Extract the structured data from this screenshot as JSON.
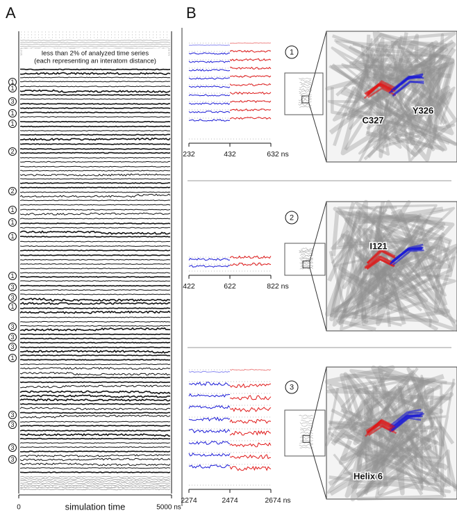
{
  "panel_a": {
    "label": "A",
    "note": [
      "less than 2% of analyzed time series",
      "(each representing an interatom distance)"
    ],
    "markers": [
      "1",
      "1",
      "3",
      "1",
      "1",
      "2",
      "2",
      "1",
      "1",
      "1",
      "1",
      "3",
      "3",
      "1",
      "3",
      "3",
      "3",
      "1",
      "3",
      "3",
      "3",
      "3"
    ],
    "xticks": [
      0,
      {
        "value": 5000,
        "label": "5000 ns"
      }
    ],
    "xlabel": "simulation time"
  },
  "panel_b": {
    "label": "B",
    "rows": [
      {
        "marker": "1",
        "xticks": [
          232,
          432,
          {
            "value": 632,
            "label": "632 ns"
          }
        ],
        "residues": [
          "C327",
          "Y326"
        ]
      },
      {
        "marker": "2",
        "xticks": [
          422,
          622,
          {
            "value": 822,
            "label": "822 ns"
          }
        ],
        "residues": [
          "I121"
        ]
      },
      {
        "marker": "3",
        "xticks": [
          2274,
          2474,
          {
            "value": 2674,
            "label": "2674 ns"
          }
        ],
        "residues": [
          "Helix 6"
        ]
      }
    ]
  }
}
